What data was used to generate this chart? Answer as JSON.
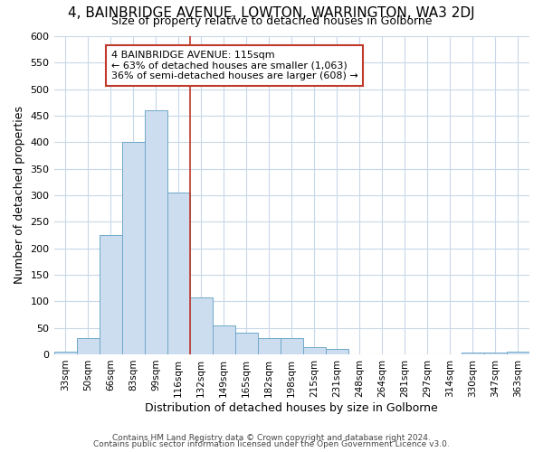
{
  "title": "4, BAINBRIDGE AVENUE, LOWTON, WARRINGTON, WA3 2DJ",
  "subtitle": "Size of property relative to detached houses in Golborne",
  "xlabel": "Distribution of detached houses by size in Golborne",
  "ylabel": "Number of detached properties",
  "categories": [
    "33sqm",
    "50sqm",
    "66sqm",
    "83sqm",
    "99sqm",
    "116sqm",
    "132sqm",
    "149sqm",
    "165sqm",
    "182sqm",
    "198sqm",
    "215sqm",
    "231sqm",
    "248sqm",
    "264sqm",
    "281sqm",
    "297sqm",
    "314sqm",
    "330sqm",
    "347sqm",
    "363sqm"
  ],
  "values": [
    5,
    30,
    225,
    400,
    460,
    305,
    108,
    55,
    40,
    30,
    30,
    13,
    10,
    0,
    0,
    0,
    0,
    0,
    3,
    3,
    5
  ],
  "bar_color": "#ccddf0",
  "bar_edge_color": "#6fa8c8",
  "property_line_color": "#c0392b",
  "annotation_text": "4 BAINBRIDGE AVENUE: 115sqm\n← 63% of detached houses are smaller (1,063)\n36% of semi-detached houses are larger (608) →",
  "annotation_box_color": "#ffffff",
  "annotation_box_edge": "#c0392b",
  "ylim": [
    0,
    600
  ],
  "yticks": [
    0,
    50,
    100,
    150,
    200,
    250,
    300,
    350,
    400,
    450,
    500,
    550,
    600
  ],
  "footer1": "Contains HM Land Registry data © Crown copyright and database right 2024.",
  "footer2": "Contains public sector information licensed under the Open Government Licence v3.0.",
  "bg_color": "#ffffff",
  "grid_color": "#c8d8e8",
  "title_fontsize": 11,
  "subtitle_fontsize": 9
}
